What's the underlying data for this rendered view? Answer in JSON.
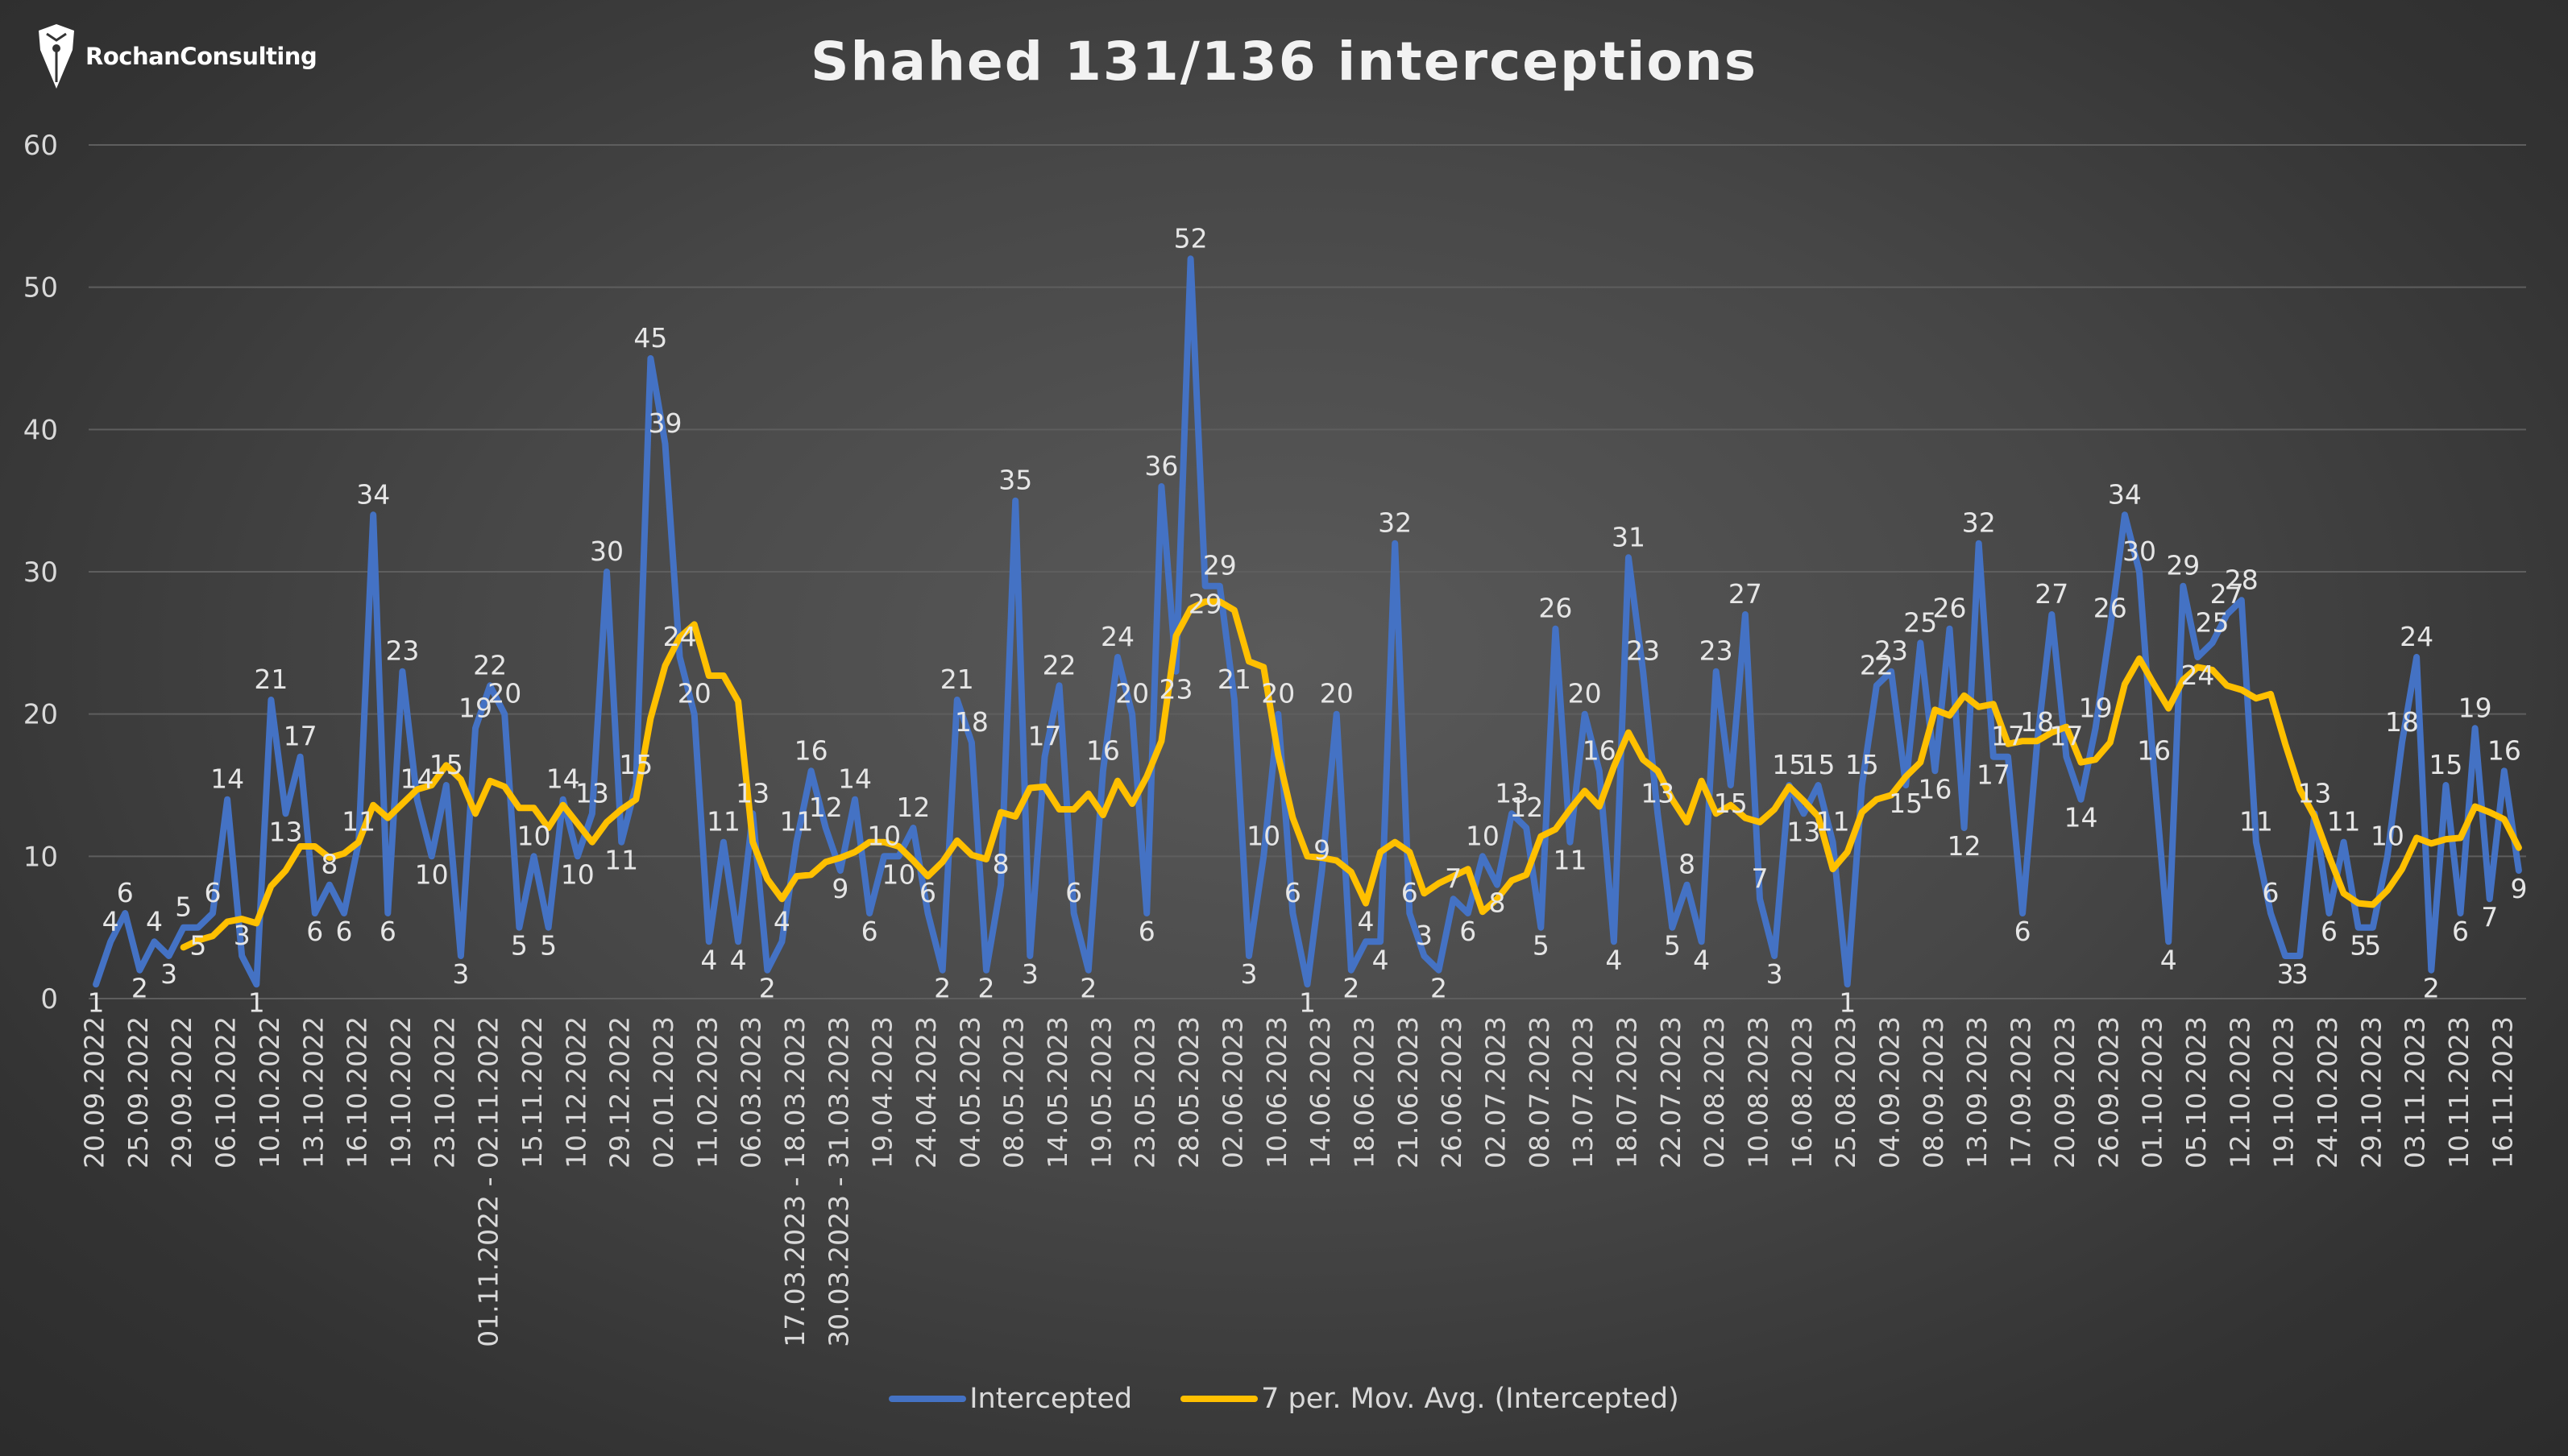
{
  "brand": {
    "name": "RochanConsulting"
  },
  "colors": {
    "intercepted": "#4472c4",
    "moving_avg": "#ffc000",
    "label_text": "#e6e6e6",
    "axis_text": "#d9d9d9",
    "grid": "#5e5e5e"
  },
  "chart_data": {
    "type": "line",
    "title": "Shahed 131/136 interceptions",
    "ylim": [
      0,
      60
    ],
    "yticks": [
      0,
      10,
      20,
      30,
      40,
      50,
      60
    ],
    "grid": true,
    "legend_position": "bottom",
    "categories": [
      "20.09.2022",
      "",
      "",
      "25.09.2022",
      "",
      "",
      "29.09.2022",
      "",
      "",
      "06.10.2022",
      "",
      "",
      "10.10.2022",
      "",
      "",
      "13.10.2022",
      "",
      "",
      "16.10.2022",
      "",
      "",
      "19.10.2022",
      "",
      "",
      "23.10.2022",
      "",
      "",
      "01.11.2022 - 02.11.2022",
      "",
      "",
      "15.11.2022",
      "",
      "",
      "10.12.2022",
      "",
      "",
      "29.12.2022",
      "",
      "",
      "02.01.2023",
      "",
      "",
      "11.02.2023",
      "",
      "",
      "06.03.2023",
      "",
      "",
      "17.03.2023 - 18.03.2023",
      "",
      "",
      "30.03.2023 - 31.03.2023",
      "",
      "",
      "19.04.2023",
      "",
      "",
      "24.04.2023",
      "",
      "",
      "04.05.2023",
      "",
      "",
      "08.05.2023",
      "",
      "",
      "14.05.2023",
      "",
      "",
      "19.05.2023",
      "",
      "",
      "23.05.2023",
      "",
      "",
      "28.05.2023",
      "",
      "",
      "02.06.2023",
      "",
      "",
      "10.06.2023",
      "",
      "",
      "14.06.2023",
      "",
      "",
      "18.06.2023",
      "",
      "",
      "21.06.2023",
      "",
      "",
      "26.06.2023",
      "",
      "",
      "02.07.2023",
      "",
      "",
      "08.07.2023",
      "",
      "",
      "13.07.2023",
      "",
      "",
      "18.07.2023",
      "",
      "",
      "22.07.2023",
      "",
      "",
      "02.08.2023",
      "",
      "",
      "10.08.2023",
      "",
      "",
      "16.08.2023",
      "",
      "",
      "25.08.2023",
      "",
      "",
      "04.09.2023",
      "",
      "",
      "08.09.2023",
      "",
      "",
      "13.09.2023",
      "",
      "",
      "17.09.2023",
      "",
      "",
      "20.09.2023",
      "",
      "",
      "26.09.2023",
      "",
      "",
      "01.10.2023",
      "",
      "",
      "05.10.2023",
      "",
      "",
      "12.10.2023",
      "",
      "",
      "19.10.2023",
      "",
      "",
      "24.10.2023",
      "",
      "",
      "29.10.2023",
      "",
      "",
      "03.11.2023",
      "",
      "",
      "10.11.2023",
      "",
      "",
      "16.11.2023",
      ""
    ],
    "series": [
      {
        "name": "Intercepted",
        "values": [
          1,
          4,
          6,
          2,
          4,
          3,
          5,
          5,
          6,
          14,
          3,
          1,
          21,
          13,
          17,
          6,
          8,
          6,
          11,
          34,
          6,
          23,
          14,
          10,
          15,
          3,
          19,
          22,
          20,
          5,
          10,
          5,
          14,
          10,
          13,
          30,
          11,
          15,
          45,
          39,
          24,
          20,
          4,
          11,
          4,
          13,
          2,
          4,
          11,
          16,
          12,
          9,
          14,
          6,
          10,
          10,
          12,
          6,
          2,
          21,
          18,
          2,
          8,
          35,
          3,
          17,
          22,
          6,
          2,
          16,
          24,
          20,
          6,
          36,
          23,
          52,
          29,
          29,
          21,
          3,
          10,
          20,
          6,
          1,
          9,
          20,
          2,
          4,
          4,
          32,
          6,
          3,
          2,
          7,
          6,
          10,
          8,
          13,
          12,
          5,
          26,
          11,
          20,
          16,
          4,
          31,
          23,
          13,
          5,
          8,
          4,
          23,
          15,
          27,
          7,
          3,
          15,
          13,
          15,
          11,
          1,
          15,
          22,
          23,
          15,
          25,
          16,
          26,
          12,
          32,
          17,
          17,
          6,
          18,
          27,
          17,
          14,
          19,
          26,
          34,
          30,
          16,
          4,
          29,
          24,
          25,
          27,
          28,
          11,
          6,
          3,
          3,
          13,
          6,
          11,
          5,
          5,
          10,
          18,
          24,
          2,
          15,
          6,
          19,
          7,
          16,
          9
        ]
      },
      {
        "name": "7 per. Mov. Avg. (Intercepted)",
        "values": [
          null,
          null,
          null,
          null,
          null,
          null,
          3.6,
          4.1,
          4.4,
          5.4,
          5.6,
          5.3,
          7.9,
          9.0,
          10.7,
          10.7,
          9.9,
          10.2,
          11.0,
          13.6,
          12.7,
          13.7,
          14.7,
          15.0,
          16.4,
          15.4,
          13.0,
          15.3,
          14.9,
          13.4,
          13.4,
          12.0,
          13.6,
          12.3,
          11.0,
          12.4,
          13.3,
          14.0,
          19.7,
          23.4,
          25.4,
          26.3,
          22.7,
          22.7,
          20.9,
          11.0,
          8.4,
          7.0,
          8.6,
          8.7,
          9.6,
          9.9,
          10.3,
          11.0,
          11.0,
          10.7,
          9.7,
          8.6,
          9.6,
          11.1,
          10.1,
          9.8,
          13.1,
          12.8,
          14.8,
          14.9,
          13.3,
          13.3,
          14.4,
          12.9,
          15.3,
          13.7,
          15.6,
          18.1,
          25.5,
          27.4,
          27.9,
          27.9,
          27.3,
          23.7,
          23.3,
          17.1,
          12.7,
          10.0,
          9.9,
          9.7,
          8.9,
          6.7,
          10.3,
          11.0,
          10.3,
          7.4,
          8.1,
          8.6,
          9.1,
          6.1,
          7.0,
          8.3,
          8.7,
          11.4,
          11.9,
          13.3,
          14.6,
          13.5,
          16.3,
          18.7,
          16.8,
          16.0,
          14.0,
          12.4,
          15.3,
          13.0,
          13.6,
          12.7,
          12.4,
          13.3,
          14.9,
          13.9,
          12.8,
          9.1,
          10.3,
          13.1,
          14.0,
          14.3,
          15.6,
          16.6,
          20.3,
          19.9,
          21.3,
          20.5,
          20.7,
          17.9,
          18.1,
          18.1,
          18.7,
          19.1,
          16.6,
          16.8,
          18.0,
          22.1,
          23.9,
          22.1,
          20.4,
          22.4,
          23.3,
          23.1,
          22.0,
          21.7,
          21.1,
          21.4,
          17.9,
          14.7,
          12.8,
          10.0,
          7.4,
          6.7,
          6.6,
          7.6,
          9.1,
          11.3,
          10.9,
          11.2,
          11.3,
          13.5,
          13.1,
          12.6,
          10.6
        ]
      }
    ],
    "visible_labels": {
      "Intercepted": [
        1,
        4,
        6,
        2,
        4,
        3,
        5,
        5,
        6,
        14,
        3,
        1,
        21,
        13,
        17,
        6,
        8,
        6,
        11,
        34,
        6,
        23,
        14,
        10,
        15,
        3,
        19,
        22,
        20,
        5,
        10,
        5,
        14,
        10,
        13,
        30,
        11,
        15,
        45,
        39,
        24,
        20,
        4,
        11,
        4,
        13,
        2,
        4,
        11,
        16,
        12,
        9,
        14,
        6,
        10,
        10,
        12,
        6,
        2,
        21,
        18,
        2,
        8,
        35,
        3,
        17,
        22,
        6,
        2,
        16,
        24,
        20,
        6,
        36,
        23,
        52,
        29,
        29,
        21,
        3,
        10,
        20,
        6,
        1,
        9,
        20,
        2,
        4,
        4,
        32,
        6,
        3,
        2,
        7,
        6,
        10,
        8,
        13,
        12,
        5,
        26,
        11,
        20,
        16,
        4,
        31,
        23,
        13,
        5,
        8,
        4,
        23,
        15,
        27,
        7,
        3,
        15,
        13,
        15,
        11,
        1,
        15,
        22,
        23,
        15,
        25,
        16,
        26,
        12,
        32,
        17,
        17,
        6,
        18,
        27,
        17,
        14,
        19,
        26,
        34,
        30,
        16,
        4,
        29,
        24,
        25,
        27,
        28,
        11,
        6,
        3,
        3,
        13,
        6,
        11,
        5,
        5,
        10,
        18,
        24,
        2,
        15,
        6,
        19,
        7,
        16,
        9
      ]
    }
  }
}
